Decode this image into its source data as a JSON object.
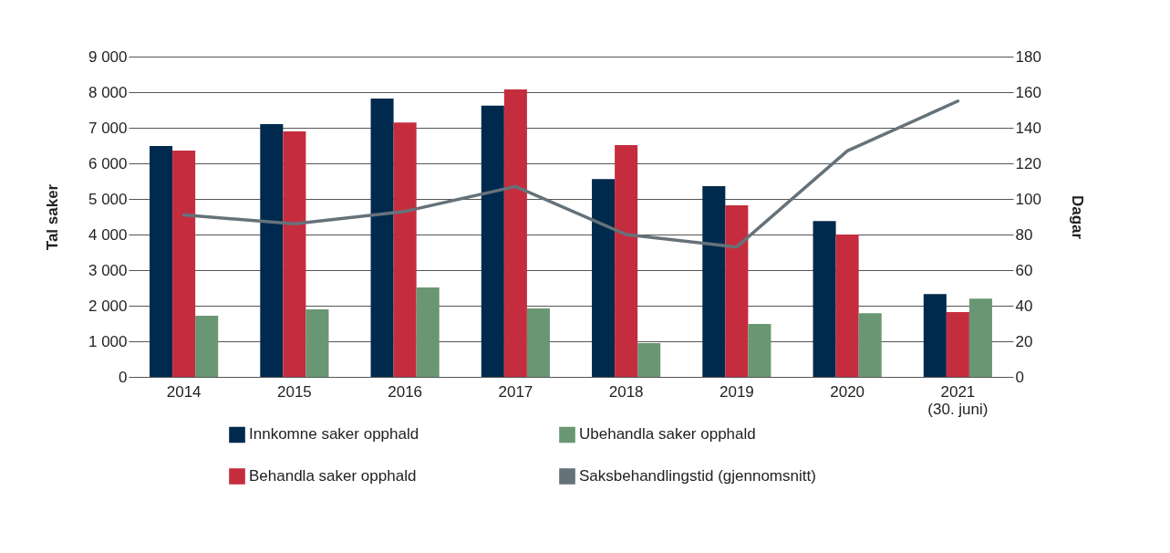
{
  "chart_data": {
    "type": "bar",
    "xlabel": null,
    "ylabel": "Tal saker",
    "y2label": "Dagar",
    "categories": [
      "2014",
      "2015",
      "2016",
      "2017",
      "2018",
      "2019",
      "2020",
      "2021\n(30. juni)"
    ],
    "series": [
      {
        "name": "Innkomne saker opphald",
        "color": "#002a4d",
        "values": [
          6490,
          7100,
          7820,
          7620,
          5560,
          5360,
          4380,
          2330
        ]
      },
      {
        "name": "Behandla saker opphald",
        "color": "#c52d3f",
        "values": [
          6360,
          6900,
          7150,
          8080,
          6510,
          4820,
          4000,
          1820
        ]
      },
      {
        "name": "Ubehandla saker opphald",
        "color": "#6a9773",
        "values": [
          1720,
          1900,
          2510,
          1920,
          950,
          1490,
          1790,
          2200
        ]
      },
      {
        "name": "Saksbehandlingstid (gjennomsnitt)",
        "type": "line",
        "axis": "y2",
        "color": "#66727a",
        "values": [
          91,
          86,
          93,
          107,
          80,
          73,
          127,
          155
        ]
      }
    ],
    "ylim": [
      0,
      9000
    ],
    "yticks": [
      0,
      {
        "value": 1000,
        "label": "1 000"
      },
      {
        "value": 2000,
        "label": "2 000"
      },
      {
        "value": 3000,
        "label": "3 000"
      },
      {
        "value": 4000,
        "label": "4 000"
      },
      {
        "value": 5000,
        "label": "5 000"
      },
      {
        "value": 6000,
        "label": "6 000"
      },
      {
        "value": 7000,
        "label": "7 000"
      },
      {
        "value": 8000,
        "label": "8 000"
      },
      {
        "value": 9000,
        "label": "9 000"
      }
    ],
    "y2lim": [
      0,
      180
    ],
    "y2ticks": [
      0,
      20,
      40,
      60,
      80,
      100,
      120,
      140,
      160,
      180
    ],
    "grid": "y",
    "legend": "bottom"
  }
}
